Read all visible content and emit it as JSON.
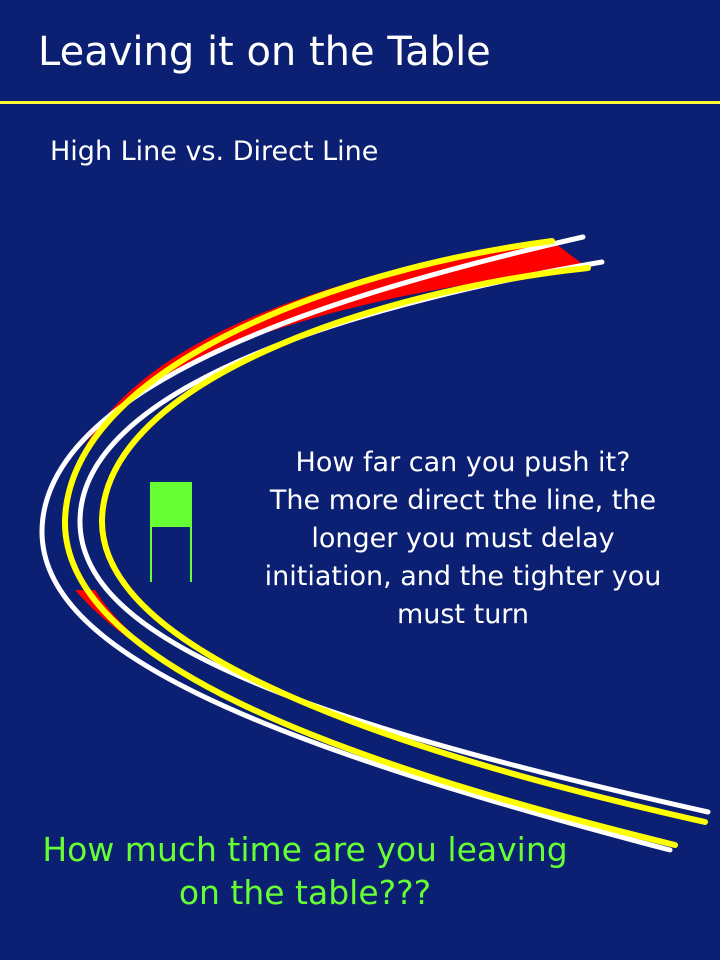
{
  "slide": {
    "title": "Leaving it on the Table",
    "subtitle": "High Line vs. Direct Line",
    "callout_lines": [
      "How far can you push it?",
      "The more direct the line, the",
      "longer you must delay",
      "initiation, and the tighter you",
      "must turn"
    ],
    "question_lines": [
      "How much time are you leaving",
      "on the table???"
    ]
  },
  "colors": {
    "background": "#0b1f73",
    "title_rule": "#ffff33",
    "high_line": "#ffff00",
    "direct_line": "#ffff00",
    "course_edge": "#ffffff",
    "time_lost": "#ff0000",
    "gate": "#66ff33",
    "question_text": "#66ff33"
  },
  "icons": {
    "gate": "gate-flag-icon"
  }
}
